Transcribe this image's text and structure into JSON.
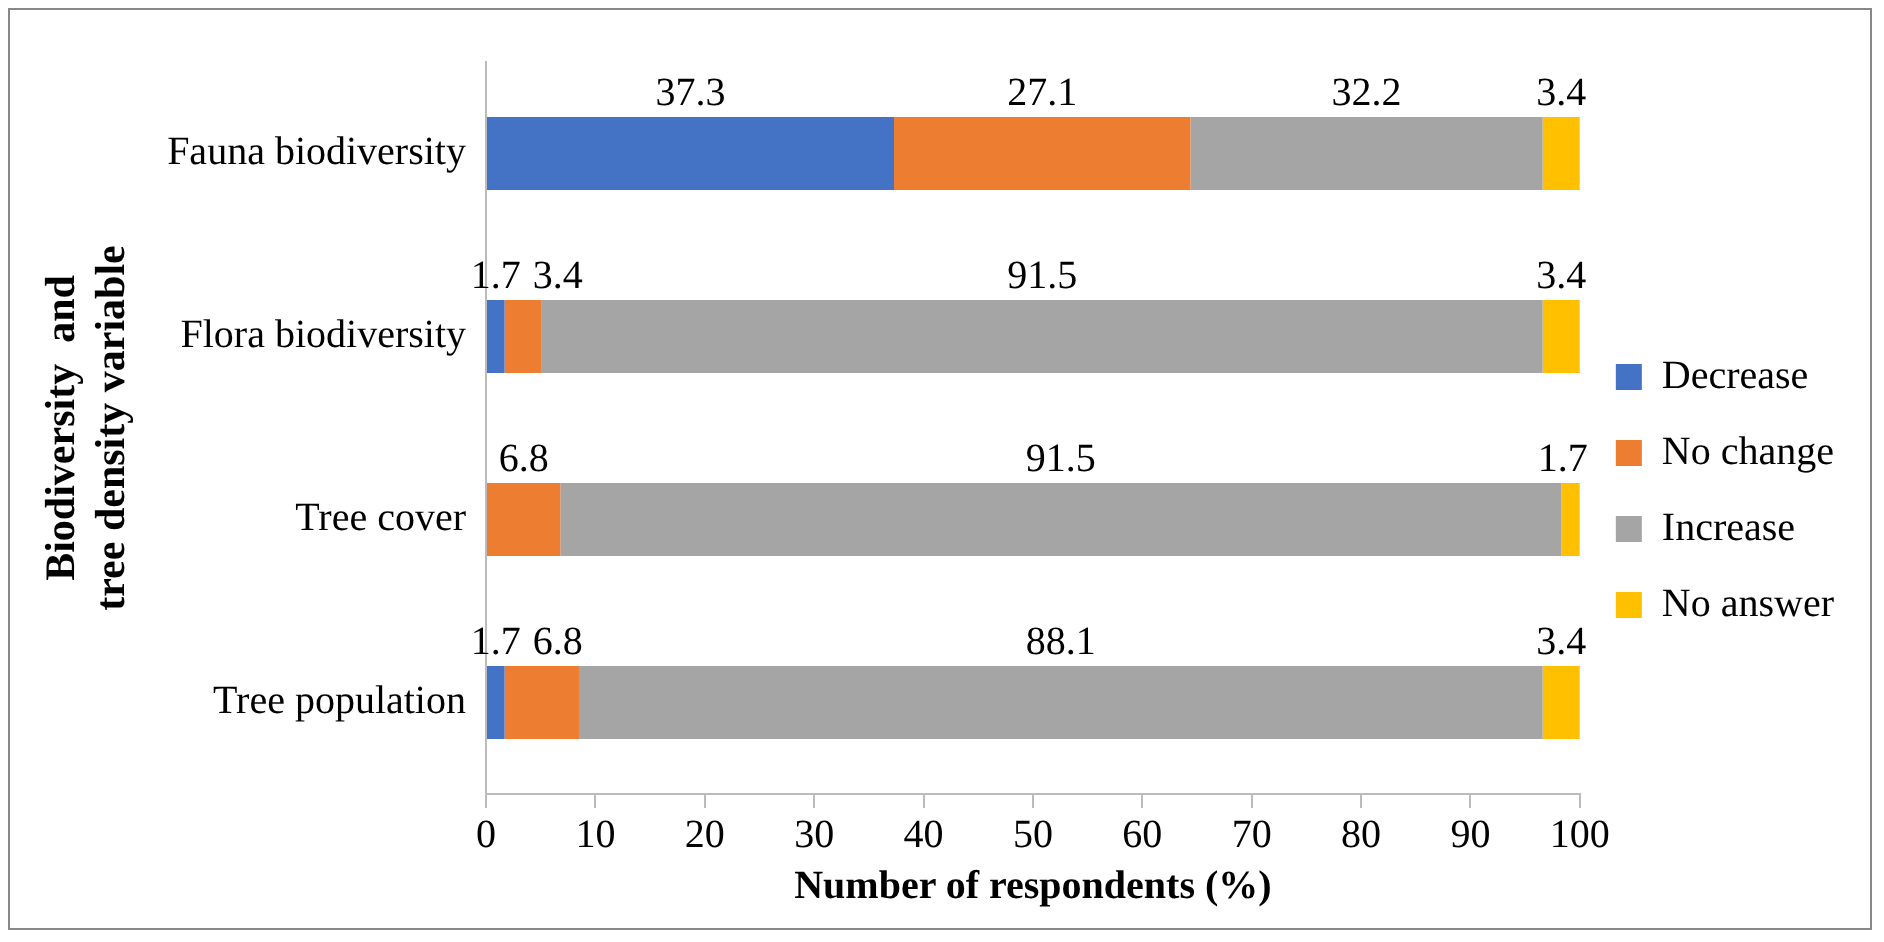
{
  "chart_data": {
    "type": "bar",
    "orientation": "horizontal",
    "stacked": true,
    "xlabel": "Number of respondents (%)",
    "ylabel": "Biodiversity  and tree density variable",
    "categories": [
      "Fauna biodiversity",
      "Flora biodiversity",
      "Tree cover",
      "Tree population"
    ],
    "series": [
      {
        "name": "Decrease",
        "color": "#4472c4",
        "values": [
          37.3,
          1.7,
          null,
          1.7
        ]
      },
      {
        "name": "No change",
        "color": "#ed7d31",
        "values": [
          27.1,
          3.4,
          6.8,
          6.8
        ]
      },
      {
        "name": "Increase",
        "color": "#a5a5a5",
        "values": [
          32.2,
          91.5,
          91.5,
          88.1
        ]
      },
      {
        "name": "No answer",
        "color": "#ffc000",
        "values": [
          3.4,
          3.4,
          1.7,
          3.4
        ]
      }
    ],
    "xlim": [
      0,
      100
    ],
    "xticks": [
      0,
      10,
      20,
      30,
      40,
      50,
      60,
      70,
      80,
      90,
      100
    ],
    "grid": false,
    "legend": "right",
    "data_labels": true
  }
}
